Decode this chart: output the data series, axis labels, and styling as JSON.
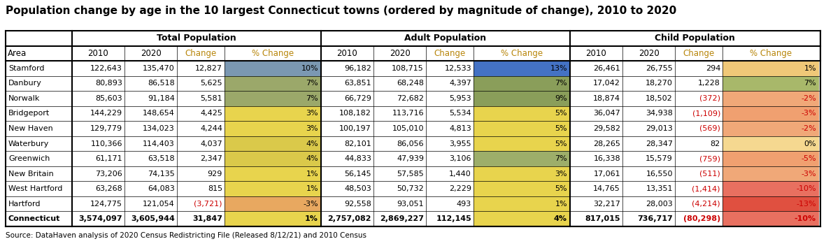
{
  "title": "Population change by age in the 10 largest Connecticut towns (ordered by magnitude of change), 2010 to 2020",
  "source": "Source: DataHaven analysis of 2020 Census Redistricting File (Released 8/12/21) and 2010 Census",
  "areas": [
    "Stamford",
    "Danbury",
    "Norwalk",
    "Bridgeport",
    "New Haven",
    "Waterbury",
    "Greenwich",
    "New Britain",
    "West Hartford",
    "Hartford",
    "Connecticut"
  ],
  "total_pop": {
    "2010": [
      122643,
      80893,
      85603,
      144229,
      129779,
      110366,
      61171,
      73206,
      63268,
      124775,
      3574097
    ],
    "2020": [
      135470,
      86518,
      91184,
      148654,
      134023,
      114403,
      63518,
      74135,
      64083,
      121054,
      3605944
    ],
    "change": [
      12827,
      5625,
      5581,
      4425,
      4244,
      4037,
      2347,
      929,
      815,
      -3721,
      31847
    ],
    "pct": [
      10,
      7,
      7,
      3,
      3,
      4,
      4,
      1,
      1,
      -3,
      1
    ]
  },
  "adult_pop": {
    "2010": [
      96182,
      63851,
      66729,
      108182,
      100197,
      82101,
      44833,
      56145,
      48503,
      92558,
      2757082
    ],
    "2020": [
      108715,
      68248,
      72682,
      113716,
      105010,
      86056,
      47939,
      57585,
      50732,
      93051,
      2869227
    ],
    "change": [
      12533,
      4397,
      5953,
      5534,
      4813,
      3955,
      3106,
      1440,
      2229,
      493,
      112145
    ],
    "pct": [
      13,
      7,
      9,
      5,
      5,
      5,
      7,
      3,
      5,
      1,
      4
    ]
  },
  "child_pop": {
    "2010": [
      26461,
      17042,
      18874,
      36047,
      29582,
      28265,
      16338,
      17061,
      14765,
      32217,
      817015
    ],
    "2020": [
      26755,
      18270,
      18502,
      34938,
      29013,
      28347,
      15579,
      16550,
      13351,
      28003,
      736717
    ],
    "change": [
      294,
      1228,
      -372,
      -1109,
      -569,
      82,
      -759,
      -511,
      -1414,
      -4214,
      -80298
    ],
    "pct": [
      1,
      7,
      -2,
      -3,
      -2,
      0,
      -5,
      -3,
      -10,
      -13,
      -10
    ]
  },
  "total_pct_colors": [
    "#7B98B2",
    "#9BA86A",
    "#9BA86A",
    "#E8D44D",
    "#E8D44D",
    "#DAC94A",
    "#DAC94A",
    "#E8D44D",
    "#E8D44D",
    "#E8A860",
    "#E8D44D"
  ],
  "adult_pct_colors": [
    "#4472C4",
    "#8A9E5A",
    "#8A9E5A",
    "#E8D44D",
    "#E8D44D",
    "#E8D44D",
    "#9DAE6A",
    "#E8D44D",
    "#E8D44D",
    "#E8D44D",
    "#E8D44D"
  ],
  "child_pct_colors": [
    "#F0C878",
    "#A8B86A",
    "#F0A878",
    "#F0A070",
    "#F0A878",
    "#F5D890",
    "#F0A070",
    "#F0A878",
    "#E87060",
    "#E05040",
    "#E87060"
  ],
  "negative_color": "#CC0000",
  "positive_color": "#000000",
  "title_fontsize": 11,
  "header_fontsize": 8.5,
  "data_fontsize": 8,
  "source_fontsize": 7.5
}
